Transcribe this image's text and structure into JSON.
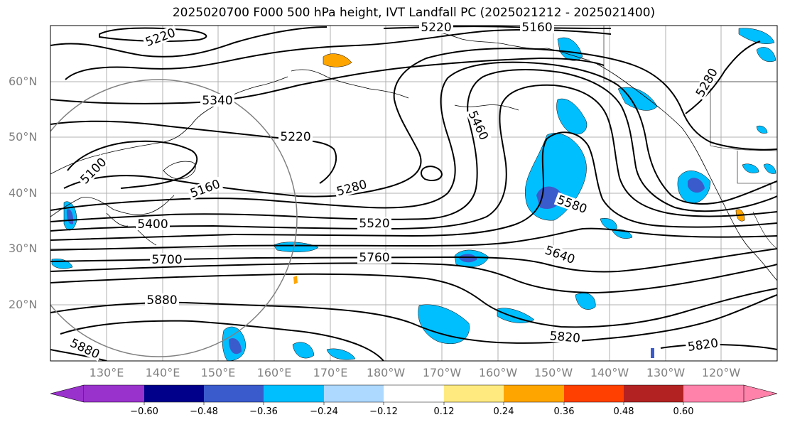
{
  "title": "2025020700 F000 500 hPa height, IVT Landfall PC (2025021212 - 2025021400)",
  "lat_labels": [
    "60°N",
    "50°N",
    "40°N",
    "30°N",
    "20°N"
  ],
  "lon_labels": [
    "130°E",
    "140°E",
    "150°E",
    "160°E",
    "170°E",
    "180°W",
    "170°W",
    "160°W",
    "150°W",
    "140°W",
    "130°W",
    "120°W"
  ],
  "contour_labels": [
    "5220",
    "5220",
    "5160",
    "5340",
    "5220",
    "5100",
    "5160",
    "5400",
    "5280",
    "5520",
    "5460",
    "5580",
    "5640",
    "5700",
    "5760",
    "5880",
    "5820",
    "5820",
    "5280",
    "5880"
  ],
  "colorbar": {
    "ticks": [
      "−0.60",
      "−0.48",
      "−0.36",
      "−0.24",
      "−0.12",
      "0.12",
      "0.24",
      "0.36",
      "0.48",
      "0.60"
    ],
    "colors": [
      "#9932CC",
      "#00008B",
      "#3A5BCC",
      "#00BFFF",
      "#ADD8FF",
      "#FFFFFF",
      "#FFEA80",
      "#FFA500",
      "#FF4000",
      "#B22222",
      "#FF82AA"
    ]
  }
}
